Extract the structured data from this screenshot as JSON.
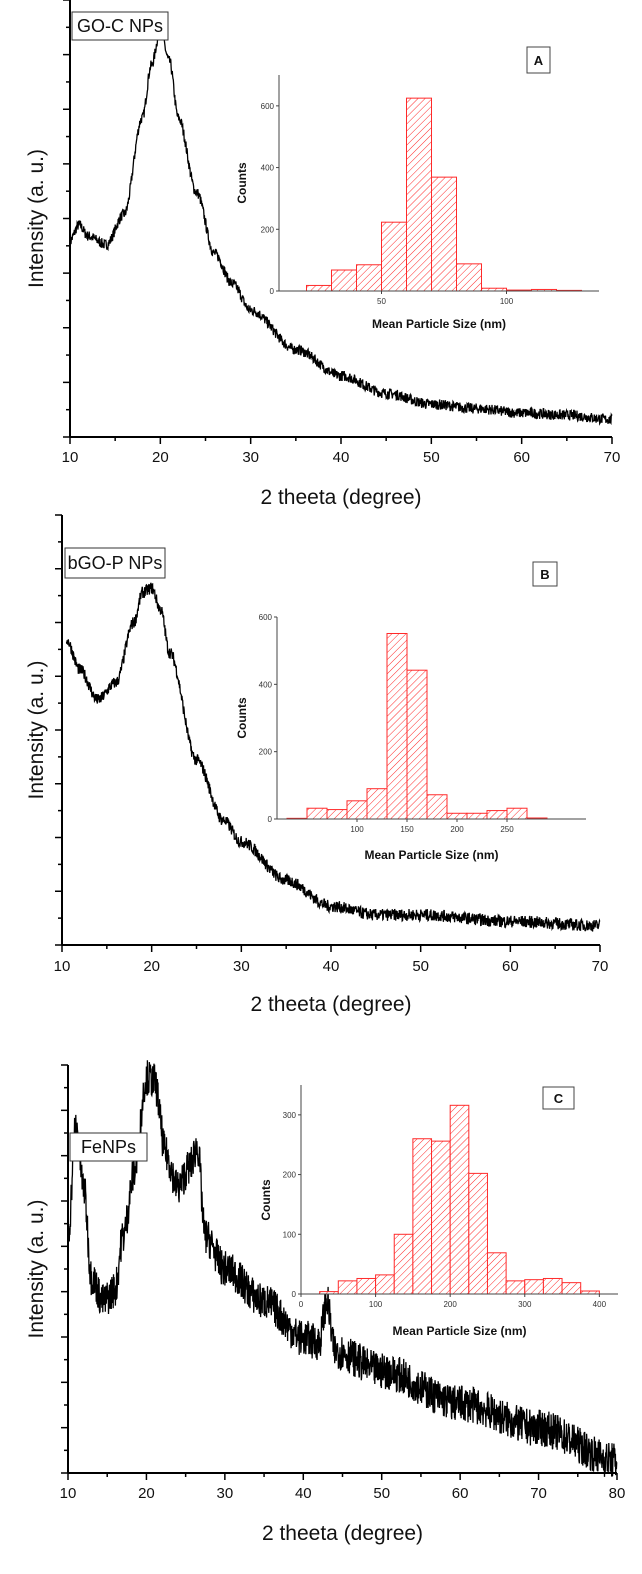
{
  "colors": {
    "curve": "#000000",
    "hist": "#ff2a2a"
  },
  "chart_data": [
    {
      "type": "line",
      "panel_label": "GO-C NPs",
      "xlabel": "2 theeta (degree)",
      "ylabel": "Intensity (a. u.)",
      "xlim": [
        10,
        70
      ],
      "xticks": [
        "10",
        "20",
        "30",
        "40",
        "50",
        "60",
        "70"
      ],
      "ylim": [
        0,
        100
      ],
      "x": [
        10,
        11,
        12,
        14,
        16,
        18,
        19,
        20,
        21,
        22,
        24,
        26,
        28,
        30,
        35,
        40,
        45,
        50,
        55,
        60,
        65,
        70
      ],
      "y": [
        45,
        48.5,
        46,
        44,
        51,
        73,
        85,
        93,
        86,
        73,
        56,
        42,
        35,
        29,
        20,
        14,
        10,
        7.5,
        6.5,
        5.5,
        5,
        4
      ],
      "inset": {
        "type": "bar",
        "letter": "A",
        "xlabel": "Mean Particle Size (nm)",
        "ylabel": "Counts",
        "xlim": [
          9,
          137
        ],
        "ylim": [
          0,
          700
        ],
        "xticks": [
          "50",
          "100"
        ],
        "yticks": [
          "0",
          "200",
          "400",
          "600"
        ],
        "bin_edges": [
          20,
          30,
          40,
          50,
          60,
          70,
          80,
          90,
          100,
          110,
          120,
          130
        ],
        "values": [
          18,
          68,
          85,
          223,
          625,
          369,
          88,
          9,
          3,
          5,
          2
        ]
      }
    },
    {
      "type": "line",
      "panel_label": "bGO-P NPs",
      "xlabel": "2 theeta (degree)",
      "ylabel": "Intensity (a. u.)",
      "xlim": [
        10,
        70
      ],
      "xticks": [
        "10",
        "20",
        "30",
        "40",
        "50",
        "60",
        "70"
      ],
      "ylim": [
        0,
        100
      ],
      "x": [
        10.5,
        12,
        14,
        16,
        18,
        19,
        20,
        21,
        22,
        25,
        28,
        30,
        35,
        40,
        45,
        50,
        60,
        70
      ],
      "y": [
        71,
        64,
        57,
        61,
        75,
        82,
        83,
        78,
        68,
        43,
        29,
        24,
        15,
        9,
        7,
        7,
        5.5,
        4.5
      ],
      "inset": {
        "type": "bar",
        "letter": "B",
        "xlabel": "Mean Particle Size (nm)",
        "ylabel": "Counts",
        "xlim": [
          20,
          329
        ],
        "ylim": [
          0,
          600
        ],
        "xticks": [
          "100",
          "150",
          "200",
          "250"
        ],
        "yticks": [
          "0",
          "200",
          "400",
          "600"
        ],
        "bin_edges": [
          30,
          50,
          70,
          90,
          110,
          130,
          150,
          170,
          190,
          210,
          230,
          250,
          270,
          290
        ],
        "values": [
          2,
          32,
          28,
          54,
          90,
          551,
          442,
          72,
          17,
          17,
          25,
          32,
          3
        ]
      }
    },
    {
      "type": "line",
      "panel_label": "FeNPs",
      "xlabel": "2 theeta (degree)",
      "ylabel": "Intensity (a. u.)",
      "xlim": [
        10,
        80
      ],
      "xticks": [
        "10",
        "20",
        "30",
        "40",
        "50",
        "60",
        "70",
        "80"
      ],
      "ylim": [
        0,
        100
      ],
      "x": [
        10,
        11,
        12,
        13,
        14.5,
        16,
        17,
        18.5,
        20,
        21,
        22.5,
        24,
        25.5,
        26.5,
        27.5,
        30,
        35,
        40,
        42,
        43,
        44,
        50,
        60,
        70,
        80
      ],
      "y": [
        58,
        85,
        70,
        48,
        42,
        45,
        58,
        74,
        97,
        96,
        78,
        70,
        75,
        80,
        58,
        50,
        42,
        33,
        32,
        42,
        30,
        25,
        17,
        11,
        3
      ],
      "inset": {
        "type": "bar",
        "letter": "C",
        "xlabel": "Mean Particle Size (nm)",
        "ylabel": "Counts",
        "xlim": [
          0,
          425
        ],
        "ylim": [
          0,
          350
        ],
        "xticks": [
          "0",
          "100",
          "200",
          "300",
          "400"
        ],
        "yticks": [
          "0",
          "100",
          "200",
          "300"
        ],
        "bin_edges": [
          25,
          50,
          75,
          100,
          125,
          150,
          175,
          200,
          225,
          250,
          275,
          300,
          325,
          350,
          375,
          400
        ],
        "values": [
          4,
          22,
          26,
          32,
          100,
          260,
          256,
          316,
          202,
          69,
          22,
          24,
          26,
          19,
          5
        ]
      }
    }
  ]
}
